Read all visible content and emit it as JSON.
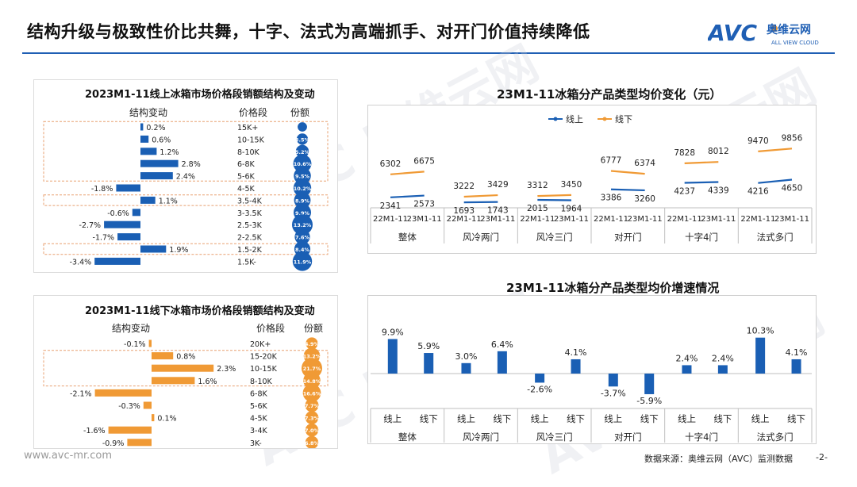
{
  "header": {
    "title": "结构升级与极致性价比共舞，十字、法式为高端抓手、对开门价值持续降低",
    "logo_text": "AVC",
    "logo_cn": "奥维云网",
    "logo_en": "ALL VIEW CLOUD"
  },
  "colors": {
    "accent": "#1f5fb4",
    "online": "#1a5fb4",
    "offline": "#f09a35"
  },
  "footer": {
    "url": "www.avc-mr.com",
    "source": "数据来源：奥维云网（AVC）监测数据",
    "page": "-2-"
  },
  "chart_data": [
    {
      "type": "bar",
      "title": "2023M1-11线上冰箱市场价格段销额结构及变动",
      "col_change": "结构变动",
      "col_segment": "价格段",
      "col_share": "份额",
      "categories": [
        "15K+",
        "10-15K",
        "8-10K",
        "6-8K",
        "5-6K",
        "4-5K",
        "3.5-4K",
        "3-3.5K",
        "2.5-3K",
        "2-2.5K",
        "1.5-2K",
        "1.5K-"
      ],
      "values": [
        0.2,
        0.6,
        1.2,
        2.8,
        2.4,
        -1.8,
        1.1,
        -0.6,
        -2.7,
        -1.7,
        1.9,
        -3.4
      ],
      "labels": [
        "0.2%",
        "0.6%",
        "1.2%",
        "2.8%",
        "2.4%",
        "-1.8%",
        "1.1%",
        "-0.6%",
        "-2.7%",
        "-1.7%",
        "1.9%",
        "-3.4%"
      ],
      "share": [
        1.5,
        3.5,
        5.2,
        10.6,
        9.5,
        10.2,
        8.9,
        9.9,
        13.2,
        7.6,
        8.4,
        11.9
      ],
      "share_labels": [
        "",
        "3.5%",
        "5.2%",
        "10.6%",
        "9.5%",
        "10.2%",
        "8.9%",
        "9.9%",
        "13.2%",
        "7.6%",
        "8.4%",
        "11.9%"
      ],
      "color": "#1a5fb4",
      "highlight_groups": [
        [
          0,
          4
        ],
        [
          6,
          6
        ],
        [
          10,
          10
        ]
      ]
    },
    {
      "type": "bar",
      "title": "2023M1-11线下冰箱市场价格段销额结构及变动",
      "col_change": "结构变动",
      "col_segment": "价格段",
      "col_share": "份额",
      "categories": [
        "20K+",
        "15-20K",
        "10-15K",
        "8-10K",
        "6-8K",
        "5-6K",
        "4-5K",
        "3-4K",
        "3K-"
      ],
      "values": [
        -0.1,
        0.8,
        2.3,
        1.6,
        -2.1,
        -0.3,
        0.1,
        -1.6,
        -0.9
      ],
      "labels": [
        "-0.1%",
        "0.8%",
        "2.3%",
        "1.6%",
        "-2.1%",
        "-0.3%",
        "0.1%",
        "-1.6%",
        "-0.9%"
      ],
      "share": [
        4.9,
        13.2,
        21.7,
        14.8,
        16.6,
        7.7,
        7.3,
        7.0,
        6.8
      ],
      "share_labels": [
        "4.9%",
        "13.2%",
        "21.7%",
        "14.8%",
        "16.6%",
        "7.7%",
        "7.3%",
        "7.0%",
        "6.8%"
      ],
      "color": "#f09a35",
      "highlight_groups": [
        [
          1,
          3
        ]
      ]
    },
    {
      "type": "line",
      "title": "23M1-11冰箱分产品类型均价变化（元）",
      "groups": [
        "整体",
        "风冷两门",
        "风冷三门",
        "对开门",
        "十字4门",
        "法式多门"
      ],
      "periods": [
        "22M1-11",
        "23M1-11"
      ],
      "series": [
        {
          "name": "线上",
          "color": "#1a5fb4",
          "values": [
            [
              2341,
              2573
            ],
            [
              1693,
              1743
            ],
            [
              2015,
              1964
            ],
            [
              3386,
              3260
            ],
            [
              4237,
              4339
            ],
            [
              4216,
              4650
            ]
          ]
        },
        {
          "name": "线下",
          "color": "#f09a35",
          "values": [
            [
              6302,
              6675
            ],
            [
              3222,
              3429
            ],
            [
              3312,
              3450
            ],
            [
              6777,
              6374
            ],
            [
              7828,
              8012
            ],
            [
              9470,
              9856
            ]
          ]
        }
      ]
    },
    {
      "type": "bar",
      "title": "23M1-11冰箱分产品类型均价增速情况",
      "groups": [
        "整体",
        "风冷两门",
        "风冷三门",
        "对开门",
        "十字4门",
        "法式多门"
      ],
      "channels": [
        "线上",
        "线下"
      ],
      "values": [
        [
          9.9,
          5.9
        ],
        [
          3.0,
          6.4
        ],
        [
          -2.6,
          4.1
        ],
        [
          -3.7,
          -5.9
        ],
        [
          2.4,
          2.4
        ],
        [
          10.3,
          4.1
        ]
      ],
      "labels": [
        [
          "9.9%",
          "5.9%"
        ],
        [
          "3.0%",
          "6.4%"
        ],
        [
          "-2.6%",
          "4.1%"
        ],
        [
          "-3.7%",
          "-5.9%"
        ],
        [
          "2.4%",
          "2.4%"
        ],
        [
          "10.3%",
          "4.1%"
        ]
      ],
      "color": "#1a5fb4"
    }
  ]
}
